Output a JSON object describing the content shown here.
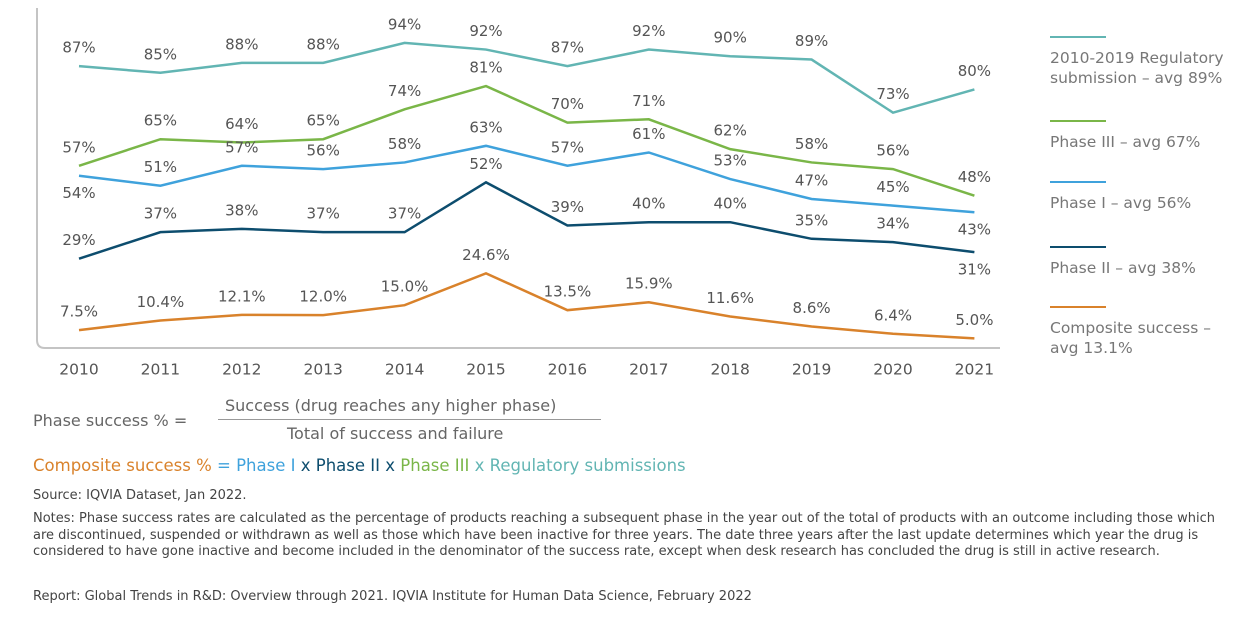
{
  "chart_data": {
    "type": "line",
    "categories": [
      "2010",
      "2011",
      "2012",
      "2013",
      "2014",
      "2015",
      "2016",
      "2017",
      "2018",
      "2019",
      "2020",
      "2021"
    ],
    "series": [
      {
        "name": "2010-2019 Regulatory submission – avg 89%",
        "color": "#62b5b3",
        "values": [
          87,
          85,
          88,
          88,
          94,
          92,
          87,
          92,
          90,
          89,
          73,
          80
        ],
        "value_labels": [
          "87%",
          "85%",
          "88%",
          "88%",
          "94%",
          "92%",
          "87%",
          "92%",
          "90%",
          "89%",
          "73%",
          "80%"
        ]
      },
      {
        "name": "Phase III – avg 67%",
        "color": "#7ab648",
        "values": [
          57,
          65,
          64,
          65,
          74,
          81,
          70,
          71,
          62,
          58,
          56,
          48
        ],
        "value_labels": [
          "57%",
          "65%",
          "64%",
          "65%",
          "74%",
          "81%",
          "70%",
          "71%",
          "62%",
          "58%",
          "56%",
          "48%"
        ]
      },
      {
        "name": "Phase I – avg 56%",
        "color": "#3fa2dc",
        "values": [
          54,
          51,
          57,
          56,
          58,
          63,
          57,
          61,
          53,
          47,
          45,
          43
        ],
        "value_labels": [
          "54%",
          "51%",
          "57%",
          "56%",
          "58%",
          "63%",
          "57%",
          "61%",
          "53%",
          "47%",
          "45%",
          "43%"
        ]
      },
      {
        "name": "Phase II – avg 38%",
        "color": "#0d4d6e",
        "values": [
          29,
          37,
          38,
          37,
          37,
          52,
          39,
          40,
          40,
          35,
          34,
          31
        ],
        "value_labels": [
          "29%",
          "37%",
          "38%",
          "37%",
          "37%",
          "52%",
          "39%",
          "40%",
          "40%",
          "35%",
          "34%",
          "31%"
        ]
      },
      {
        "name": "Composite success – avg 13.1%",
        "color": "#d9822b",
        "values": [
          7.5,
          10.4,
          12.1,
          12.0,
          15.0,
          24.6,
          13.5,
          15.9,
          11.6,
          8.6,
          6.4,
          5.0
        ],
        "value_labels": [
          "7.5%",
          "10.4%",
          "12.1%",
          "12.0%",
          "15.0%",
          "24.6%",
          "13.5%",
          "15.9%",
          "11.6%",
          "8.6%",
          "6.4%",
          "5.0%"
        ]
      }
    ]
  },
  "formula": {
    "left": "Phase success % =",
    "numerator": "Success (drug reaches any higher phase)",
    "denominator": "Total of success and failure"
  },
  "composite_formula": [
    "Composite success %",
    "=",
    "Phase I",
    "x",
    "Phase II",
    "x",
    "Phase III",
    "x",
    "Regulatory submissions"
  ],
  "source": "Source: IQVIA Dataset, Jan 2022.",
  "notes": "Notes: Phase success rates are calculated as the percentage of products reaching a subsequent phase in the year out of the total of products with an outcome including those which are discontinued, suspended or withdrawn as well as those which have been inactive for three years. The date three years after the last update determines which year the drug is considered to have gone inactive and become included in the denominator of the success rate, except when desk research has concluded the drug is still in active research.",
  "report": "Report: Global Trends in R&D: Overview through 2021. IQVIA Institute for Human Data Science, February 2022"
}
